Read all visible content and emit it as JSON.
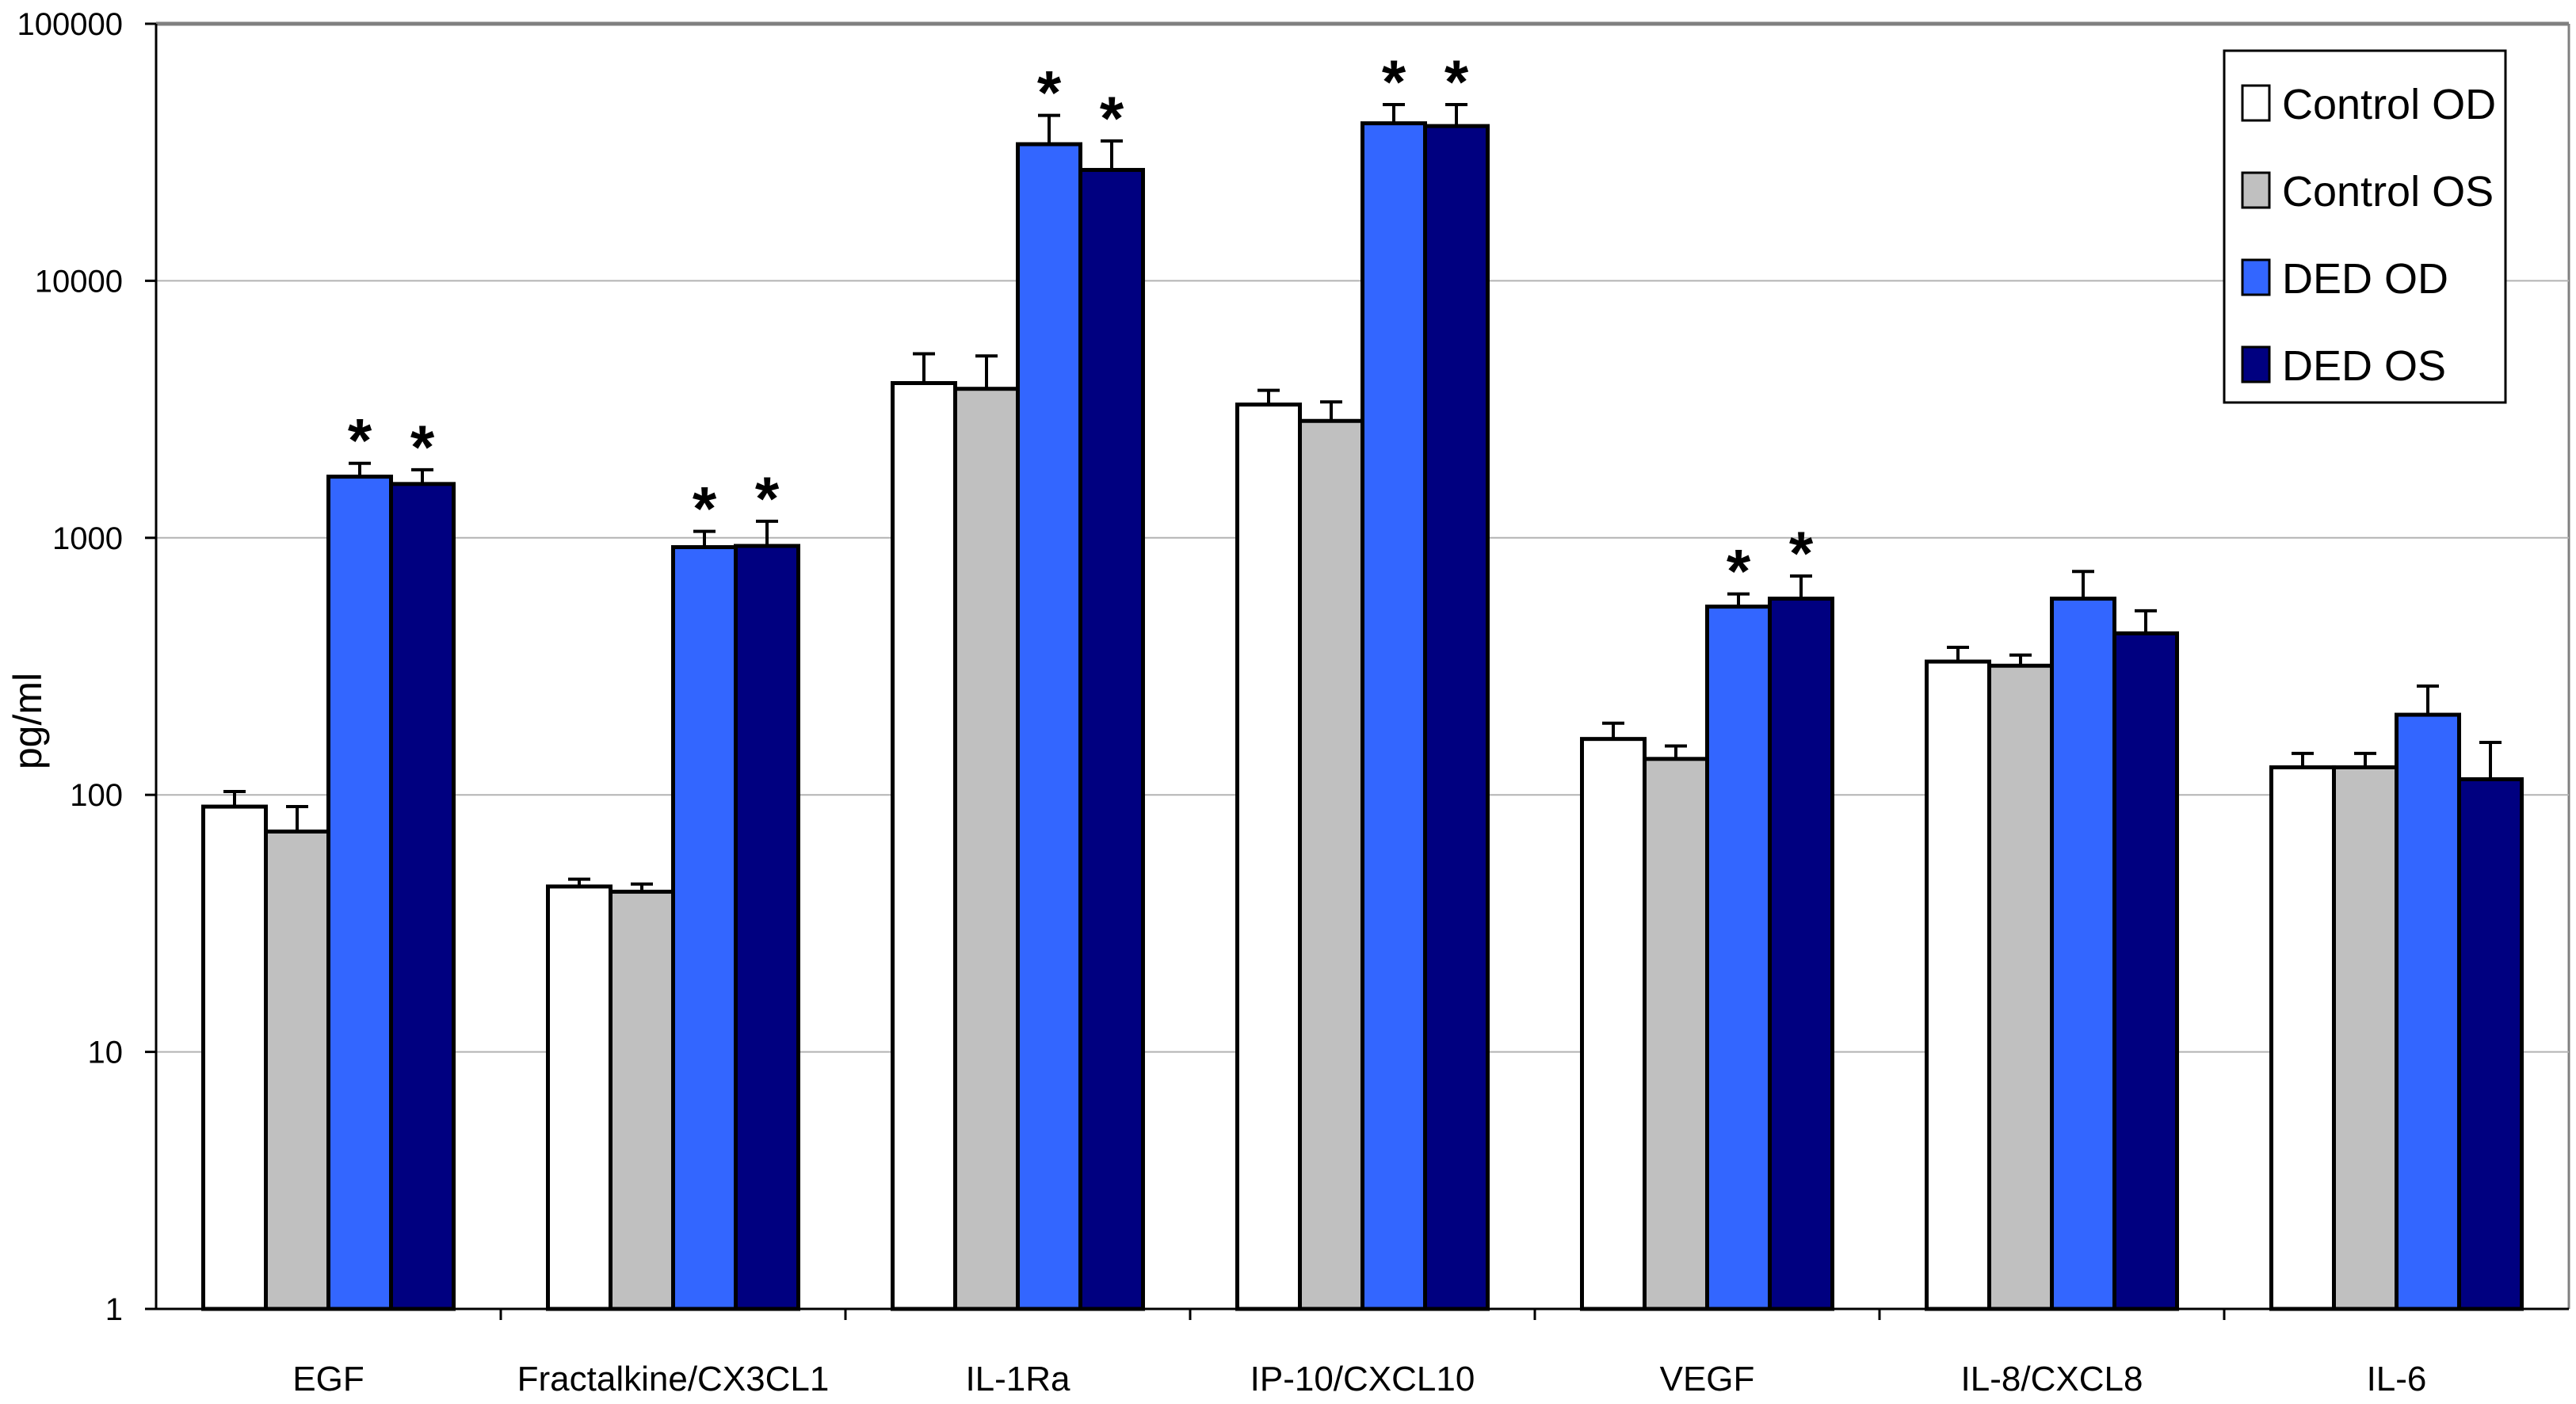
{
  "chart_data": {
    "type": "bar",
    "scale": "log",
    "ylabel": "pg/ml",
    "ylim": [
      1,
      100000
    ],
    "yticks": [
      "1",
      "10",
      "100",
      "1000",
      "10000",
      "100000"
    ],
    "grid": true,
    "legend_position": "top-right",
    "categories": [
      "EGF",
      "Fractalkine/CX3CL1",
      "IL-1Ra",
      "IP-10/CXCL10",
      "VEGF",
      "IL-8/CXCL8",
      "IL-6"
    ],
    "series": [
      {
        "name": "Control OD",
        "color": "#ffffff",
        "values": [
          90,
          44,
          4000,
          3300,
          165,
          330,
          128
        ],
        "errors": [
          103,
          47,
          5200,
          3750,
          190,
          375,
          145
        ]
      },
      {
        "name": "Control OS",
        "color": "#c0c0c0",
        "values": [
          72,
          42,
          3800,
          2850,
          138,
          318,
          128
        ],
        "errors": [
          90,
          45,
          5100,
          3380,
          155,
          350,
          145
        ]
      },
      {
        "name": "DED OD",
        "color": "#3366ff",
        "values": [
          1730,
          920,
          34000,
          41000,
          540,
          580,
          205
        ],
        "errors": [
          1950,
          1060,
          44000,
          48500,
          605,
          740,
          265
        ]
      },
      {
        "name": "DED OS",
        "color": "#000080",
        "values": [
          1620,
          930,
          27000,
          40000,
          580,
          425,
          115
        ],
        "errors": [
          1840,
          1160,
          35000,
          48500,
          710,
          520,
          160
        ]
      }
    ],
    "significance_marker": "*",
    "significant": [
      [
        false,
        false,
        true,
        true
      ],
      [
        false,
        false,
        true,
        true
      ],
      [
        false,
        false,
        true,
        true
      ],
      [
        false,
        false,
        true,
        true
      ],
      [
        false,
        false,
        true,
        true
      ],
      [
        false,
        false,
        false,
        false
      ],
      [
        false,
        false,
        false,
        false
      ]
    ]
  }
}
